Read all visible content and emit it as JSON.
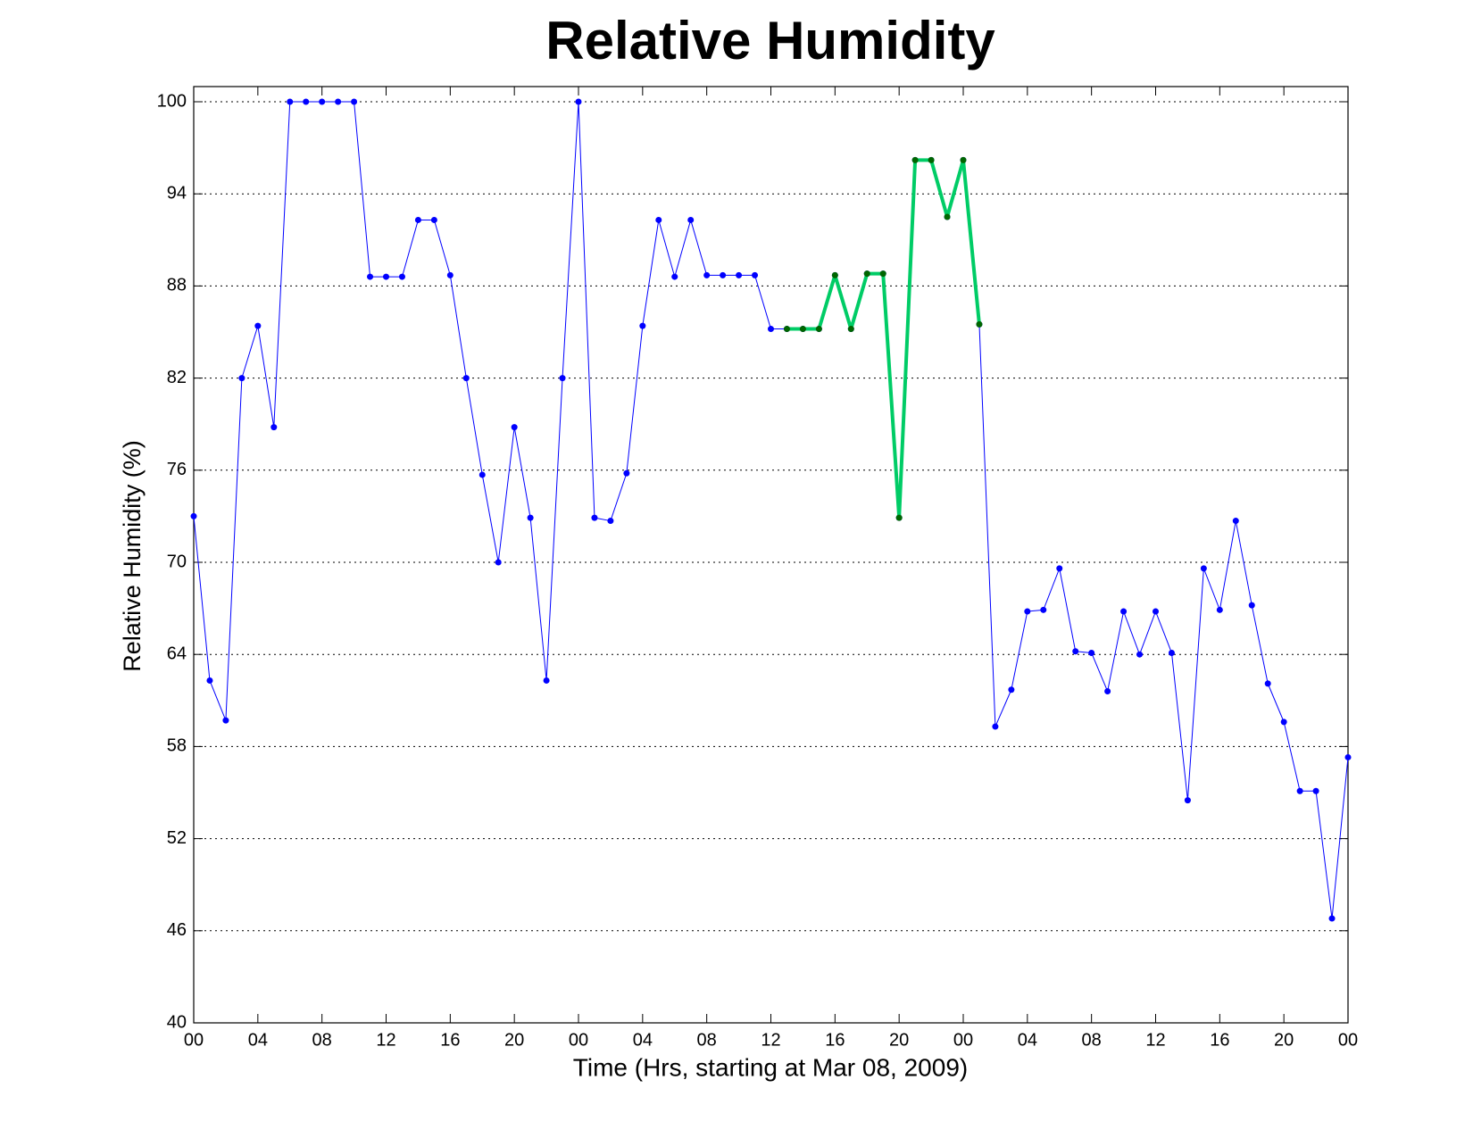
{
  "chart_data": {
    "type": "line",
    "title": "Relative Humidity",
    "xlabel": "Time (Hrs, starting at Mar 08, 2009)",
    "ylabel": "Relative Humidity (%)",
    "x": [
      0,
      1,
      2,
      3,
      4,
      5,
      6,
      7,
      8,
      9,
      10,
      11,
      12,
      13,
      14,
      15,
      16,
      17,
      18,
      19,
      20,
      21,
      22,
      23,
      24,
      25,
      26,
      27,
      28,
      29,
      30,
      31,
      32,
      33,
      34,
      35,
      36,
      37,
      38,
      39,
      40,
      41,
      42,
      43,
      44,
      45,
      46,
      47,
      48,
      49,
      50,
      51,
      52,
      53,
      54,
      55,
      56,
      57,
      58,
      59,
      60,
      61,
      62,
      63,
      64,
      65,
      66,
      67,
      68,
      69,
      70,
      71,
      72
    ],
    "series": [
      {
        "color": "#0000ff",
        "marker_color": "#0000ff",
        "line_width": 1,
        "values": [
          73,
          62.3,
          59.7,
          82,
          85.4,
          78.8,
          100,
          100,
          100,
          100,
          100,
          88.6,
          88.6,
          88.6,
          92.3,
          92.3,
          88.7,
          82,
          75.7,
          70,
          78.8,
          72.9,
          62.3,
          82,
          100,
          72.9,
          72.7,
          75.8,
          85.4,
          92.3,
          88.6,
          92.3,
          88.7,
          88.7,
          88.7,
          88.7,
          85.2,
          85.2,
          85.2,
          85.2,
          88.7,
          85.2,
          88.8,
          88.8,
          72.9,
          96.2,
          96.2,
          92.5,
          96.2,
          85.5,
          59.3,
          61.7,
          66.8,
          66.9,
          69.6,
          64.2,
          64.1,
          61.6,
          66.8,
          64,
          66.8,
          64.1,
          54.5,
          69.6,
          66.9,
          72.7,
          67.2,
          62.1,
          59.6,
          55.1,
          55.1,
          46.8,
          57.3
        ]
      },
      {
        "color": "#00cc66",
        "marker_color": "#006600",
        "line_width": 4,
        "values": [
          null,
          null,
          null,
          null,
          null,
          null,
          null,
          null,
          null,
          null,
          null,
          null,
          null,
          null,
          null,
          null,
          null,
          null,
          null,
          null,
          null,
          null,
          null,
          null,
          null,
          null,
          null,
          null,
          null,
          null,
          null,
          null,
          null,
          null,
          null,
          null,
          null,
          85.2,
          85.2,
          85.2,
          88.7,
          85.2,
          88.8,
          88.8,
          72.9,
          96.2,
          96.2,
          92.5,
          96.2,
          85.5,
          null,
          null,
          null,
          null,
          null,
          null,
          null,
          null,
          null,
          null,
          null,
          null,
          null,
          null,
          null,
          null,
          null,
          null,
          null,
          null,
          null,
          null,
          null
        ]
      }
    ],
    "xlim": [
      0,
      72
    ],
    "xticks": [
      {
        "value": 0,
        "label": "00"
      },
      {
        "value": 4,
        "label": "04"
      },
      {
        "value": 8,
        "label": "08"
      },
      {
        "value": 12,
        "label": "12"
      },
      {
        "value": 16,
        "label": "16"
      },
      {
        "value": 20,
        "label": "20"
      },
      {
        "value": 24,
        "label": "00"
      },
      {
        "value": 28,
        "label": "04"
      },
      {
        "value": 32,
        "label": "08"
      },
      {
        "value": 36,
        "label": "12"
      },
      {
        "value": 40,
        "label": "16"
      },
      {
        "value": 44,
        "label": "20"
      },
      {
        "value": 48,
        "label": "00"
      },
      {
        "value": 52,
        "label": "04"
      },
      {
        "value": 56,
        "label": "08"
      },
      {
        "value": 60,
        "label": "12"
      },
      {
        "value": 64,
        "label": "16"
      },
      {
        "value": 68,
        "label": "20"
      },
      {
        "value": 72,
        "label": "00"
      }
    ],
    "ylim": [
      40,
      100
    ],
    "yticks": [
      40,
      46,
      52,
      58,
      64,
      70,
      76,
      82,
      88,
      94,
      100
    ],
    "grid": true
  }
}
